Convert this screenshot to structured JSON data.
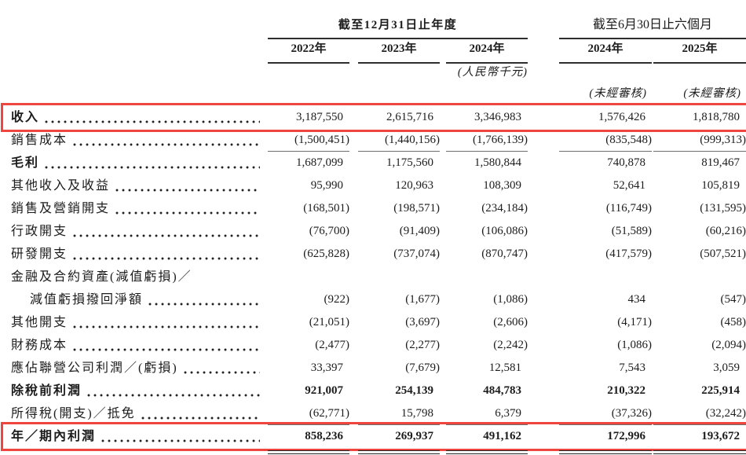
{
  "colors": {
    "highlight_box": "#ee453e",
    "text": "#1c1c1c",
    "rule": "#2e2e2e",
    "underline": "#6e6e6e"
  },
  "header": {
    "annual": {
      "title": "截至12月31日止年度",
      "years": [
        "2022年",
        "2023年",
        "2024年"
      ]
    },
    "interim": {
      "title": "截至6月30日止六個月",
      "years": [
        "2024年",
        "2025年"
      ]
    },
    "currency_note": "(人民幣千元)",
    "unaudited_notes": [
      "(未經審核)",
      "(未經審核)"
    ]
  },
  "table": {
    "rows": [
      {
        "label": "收入",
        "label_bold": true,
        "highlight": true,
        "values": [
          "3,187,550",
          "2,615,716",
          "3,346,983",
          "1,576,426",
          "1,818,780"
        ]
      },
      {
        "label": "銷售成本",
        "underline": "single",
        "values": [
          "(1,500,451)",
          "(1,440,156)",
          "(1,766,139)",
          "(835,548)",
          "(999,313)"
        ]
      },
      {
        "label": "毛利",
        "label_bold": true,
        "values": [
          "1,687,099",
          "1,175,560",
          "1,580,844",
          "740,878",
          "819,467"
        ]
      },
      {
        "label": "其他收入及收益",
        "values": [
          "95,990",
          "120,963",
          "108,309",
          "52,641",
          "105,819"
        ]
      },
      {
        "label": "銷售及營銷開支",
        "values": [
          "(168,501)",
          "(198,571)",
          "(234,184)",
          "(116,749)",
          "(131,595)"
        ]
      },
      {
        "label": "行政開支",
        "values": [
          "(76,700)",
          "(91,409)",
          "(106,086)",
          "(51,589)",
          "(60,216)"
        ]
      },
      {
        "label": "研發開支",
        "values": [
          "(625,828)",
          "(737,074)",
          "(870,747)",
          "(417,579)",
          "(507,521)"
        ]
      },
      {
        "label": "金融及合約資產(減值虧損)／",
        "label2": "減值虧損撥回淨額",
        "values": [
          "(922)",
          "(1,677)",
          "(1,086)",
          "434",
          "(547)"
        ]
      },
      {
        "label": "其他開支",
        "values": [
          "(21,051)",
          "(3,697)",
          "(2,606)",
          "(4,171)",
          "(458)"
        ]
      },
      {
        "label": "財務成本",
        "values": [
          "(2,477)",
          "(2,277)",
          "(2,242)",
          "(1,086)",
          "(2,094)"
        ]
      },
      {
        "label": "應佔聯營公司利潤／(虧損)",
        "values": [
          "33,397",
          "(7,679)",
          "12,581",
          "7,543",
          "3,059"
        ]
      },
      {
        "label": "除稅前利潤",
        "label_bold": true,
        "values_bold": true,
        "values": [
          "921,007",
          "254,139",
          "484,783",
          "210,322",
          "225,914"
        ]
      },
      {
        "label": "所得稅(開支)／抵免",
        "underline": "single",
        "values": [
          "(62,771)",
          "15,798",
          "6,379",
          "(37,326)",
          "(32,242)"
        ]
      },
      {
        "label": "年／期內利潤",
        "label_bold": true,
        "values_bold": true,
        "highlight": true,
        "underline": "double",
        "values": [
          "858,236",
          "269,937",
          "491,162",
          "172,996",
          "193,672"
        ]
      }
    ]
  }
}
